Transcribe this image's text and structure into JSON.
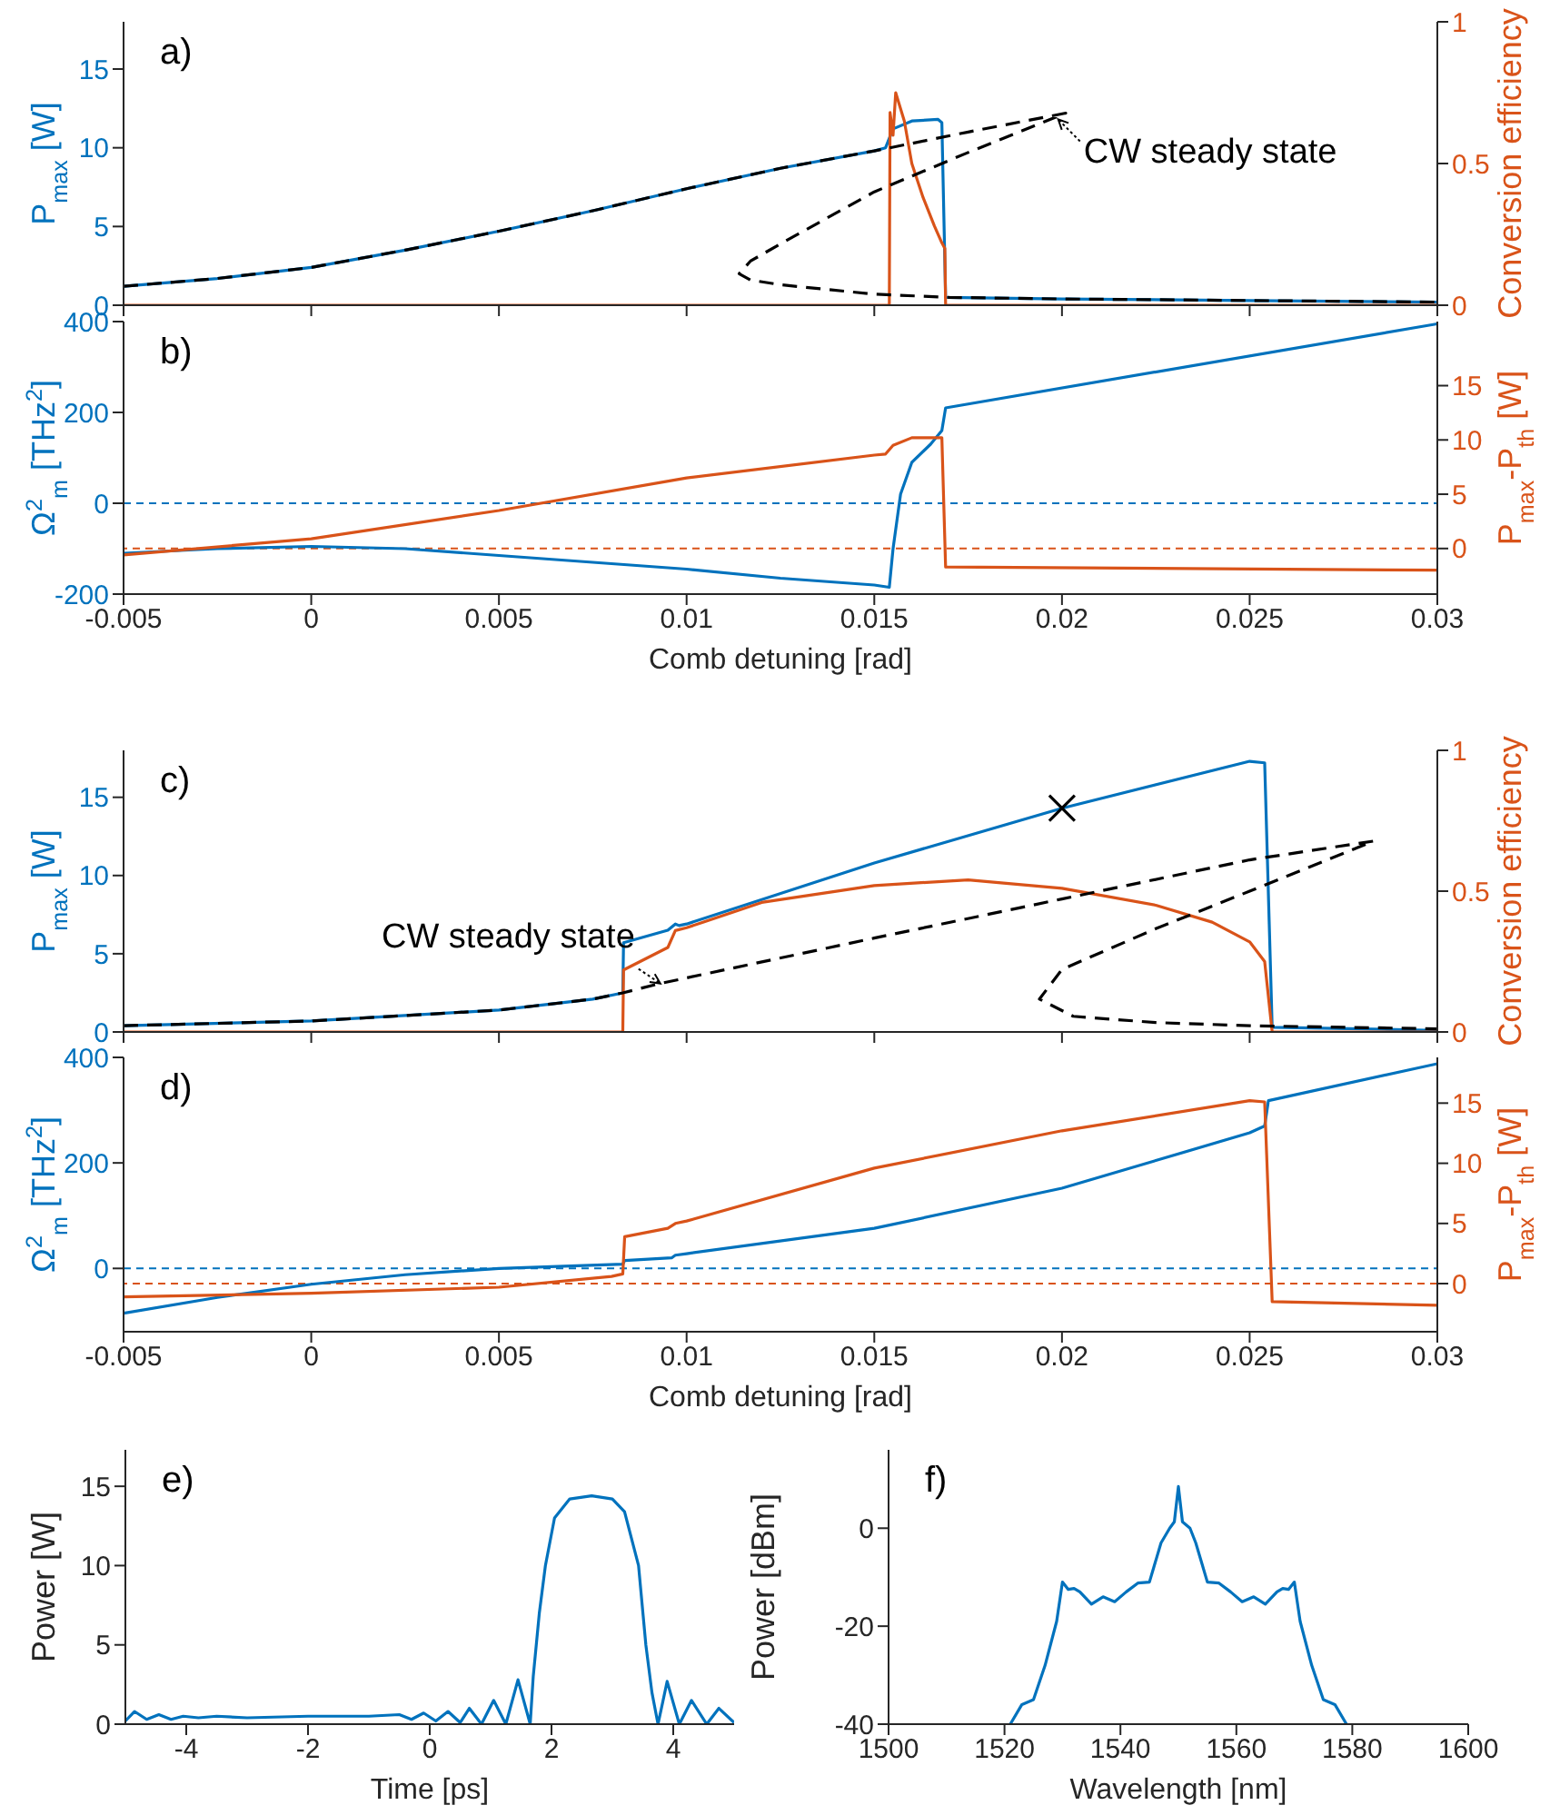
{
  "chart_data": [
    {
      "type": "line",
      "annotations": [
        "a)",
        {
          "text": "CW steady state",
          "x": 0.0199,
          "y": 11.8
        }
      ],
      "ylabel": "P$_{max}$ [W]",
      "y2label": "Conversion efficiency",
      "xlim": [
        -0.005,
        0.03
      ],
      "xticks": [
        -0.005,
        0,
        0.005,
        0.01,
        0.015,
        0.02,
        0.025,
        0.03
      ],
      "ylim": [
        0,
        18
      ],
      "yticks": [
        0,
        5,
        10,
        15
      ],
      "y2lim": [
        0,
        1
      ],
      "y2ticks": [
        0,
        0.5,
        1
      ],
      "tick_labels": "y",
      "series": [
        {
          "color": "#0072bd",
          "x": [
            -0.005,
            -0.0025,
            0,
            0.0025,
            0.005,
            0.0075,
            0.01,
            0.0125,
            0.015,
            0.0153,
            0.0155,
            0.016,
            0.0167,
            0.0168,
            0.0169,
            0.02,
            0.025,
            0.03
          ],
          "values": [
            1.2,
            1.7,
            2.4,
            3.5,
            4.7,
            6.0,
            7.4,
            8.7,
            9.8,
            10.0,
            11.2,
            11.7,
            11.8,
            11.6,
            0.5,
            0.4,
            0.3,
            0.2
          ]
        },
        {
          "color": "#d95319",
          "axis": "y2",
          "x": [
            -0.005,
            0.0154,
            0.01542,
            0.0155,
            0.01557,
            0.0158,
            0.016,
            0.0163,
            0.0166,
            0.0168,
            0.01688,
            0.0169,
            0.03
          ],
          "values": [
            0,
            0,
            0.68,
            0.6,
            0.75,
            0.65,
            0.5,
            0.38,
            0.28,
            0.22,
            0.2,
            0,
            0
          ]
        },
        {
          "color": "#000000",
          "line_style": "dashed",
          "x": [
            -0.005,
            -0.0025,
            0,
            0.0025,
            0.005,
            0.0075,
            0.01,
            0.0125,
            0.015,
            0.0175,
            0.0201,
            0.0175,
            0.015,
            0.0125,
            0.0117,
            0.0114,
            0.0117,
            0.0125,
            0.015,
            0.017,
            0.02,
            0.025,
            0.03
          ],
          "values": [
            1.2,
            1.7,
            2.4,
            3.5,
            4.7,
            6.0,
            7.4,
            8.7,
            9.8,
            11.0,
            12.2,
            9.7,
            7.2,
            3.9,
            2.8,
            2.0,
            1.6,
            1.3,
            0.7,
            0.5,
            0.4,
            0.3,
            0.2
          ]
        }
      ]
    },
    {
      "type": "line",
      "annotations": [
        "b)"
      ],
      "xlabel": "Comb detuning [rad]",
      "ylabel": "Ω$^{2}$$_{m}$ [THz$^{2}$]",
      "y2label": "P$_{max}$-P$_{th}$ [W]",
      "xlim": [
        -0.005,
        0.03
      ],
      "xticks": [
        -0.005,
        0,
        0.005,
        0.01,
        0.015,
        0.02,
        0.025,
        0.03
      ],
      "ylim": [
        -200,
        400
      ],
      "yticks": [
        -200,
        0,
        200,
        400
      ],
      "y2lim": [
        -4.2,
        20.9
      ],
      "y2ticks": [
        0,
        5,
        10,
        15
      ],
      "ref_lines": [
        {
          "axis": "y",
          "value": 0,
          "color": "#0072bd",
          "line_style": "dashed"
        },
        {
          "axis": "y2",
          "value": 0,
          "color": "#d95319",
          "line_style": "dashed"
        }
      ],
      "series": [
        {
          "color": "#0072bd",
          "x": [
            -0.005,
            -0.0025,
            0,
            0.0025,
            0.005,
            0.0075,
            0.01,
            0.0125,
            0.015,
            0.0154,
            0.0155,
            0.0157,
            0.016,
            0.0165,
            0.0168,
            0.0169,
            0.03
          ],
          "values": [
            -110,
            -100,
            -95,
            -100,
            -115,
            -130,
            -145,
            -165,
            -180,
            -185,
            -100,
            20,
            90,
            130,
            160,
            210,
            395
          ]
        },
        {
          "color": "#d95319",
          "axis": "y2",
          "x": [
            -0.005,
            0,
            0.005,
            0.01,
            0.015,
            0.0153,
            0.0155,
            0.016,
            0.0168,
            0.0169,
            0.03
          ],
          "values": [
            -0.6,
            0.9,
            3.5,
            6.5,
            8.6,
            8.7,
            9.5,
            10.2,
            10.2,
            -1.7,
            -2.0
          ]
        }
      ]
    },
    {
      "type": "line",
      "annotations": [
        "c)",
        {
          "text": "CW steady state",
          "x": 0.0093,
          "y": 3.1
        }
      ],
      "ylabel": "P$_{max}$ [W]",
      "y2label": "Conversion efficiency",
      "xlim": [
        -0.005,
        0.03
      ],
      "xticks": [
        -0.005,
        0,
        0.005,
        0.01,
        0.015,
        0.02,
        0.025,
        0.03
      ],
      "ylim": [
        0,
        18
      ],
      "yticks": [
        0,
        5,
        10,
        15
      ],
      "y2lim": [
        0,
        1
      ],
      "y2ticks": [
        0,
        0.5,
        1
      ],
      "tick_labels": "y",
      "series": [
        {
          "color": "#0072bd",
          "x": [
            -0.005,
            0,
            0.005,
            0.0075,
            0.0083,
            0.00832,
            0.0095,
            0.0097,
            0.0098,
            0.01,
            0.015,
            0.02,
            0.025,
            0.0254,
            0.0256,
            0.03
          ],
          "values": [
            0.4,
            0.7,
            1.4,
            2.1,
            2.5,
            5.7,
            6.5,
            6.9,
            6.8,
            6.9,
            10.8,
            14.3,
            17.3,
            17.2,
            0.3,
            0.1
          ]
        },
        {
          "color": "#d95319",
          "axis": "y2",
          "x": [
            -0.005,
            0.0083,
            0.00832,
            0.0095,
            0.0097,
            0.01,
            0.012,
            0.015,
            0.0175,
            0.02,
            0.0225,
            0.024,
            0.025,
            0.0254,
            0.0256,
            0.03
          ],
          "values": [
            0,
            0,
            0.22,
            0.3,
            0.36,
            0.37,
            0.46,
            0.52,
            0.54,
            0.51,
            0.45,
            0.39,
            0.32,
            0.25,
            0,
            0
          ]
        },
        {
          "color": "#000000",
          "line_style": "dashed",
          "x": [
            -0.005,
            0,
            0.005,
            0.0075,
            0.0083,
            0.0093,
            0.015,
            0.02,
            0.025,
            0.0283,
            0.025,
            0.0225,
            0.02,
            0.0194,
            0.0203,
            0.0225,
            0.025,
            0.03
          ],
          "values": [
            0.4,
            0.7,
            1.4,
            2.1,
            2.5,
            3.1,
            6.0,
            8.5,
            11.0,
            12.2,
            9.0,
            6.6,
            4.0,
            2.1,
            1.0,
            0.6,
            0.4,
            0.2
          ]
        },
        {
          "type": "scatter",
          "color": "#000000",
          "marker": "cross",
          "x": [
            0.02
          ],
          "values": [
            14.3
          ]
        }
      ]
    },
    {
      "type": "line",
      "annotations": [
        "d)"
      ],
      "xlabel": "Comb detuning [rad]",
      "ylabel": "Ω$^{2}$$_{m}$ [THz$^{2}$]",
      "y2label": "P$_{max}$-P$_{th}$ [W]",
      "xlim": [
        -0.005,
        0.03
      ],
      "xticks": [
        -0.005,
        0,
        0.005,
        0.01,
        0.015,
        0.02,
        0.025,
        0.03
      ],
      "ylim": [
        -120,
        400
      ],
      "yticks": [
        0,
        200,
        400
      ],
      "y2lim": [
        -4,
        18.8
      ],
      "y2ticks": [
        0,
        5,
        10,
        15
      ],
      "ref_lines": [
        {
          "axis": "y",
          "value": 0,
          "color": "#0072bd",
          "line_style": "dashed"
        },
        {
          "axis": "y2",
          "value": 0,
          "color": "#d95319",
          "line_style": "dashed"
        }
      ],
      "series": [
        {
          "color": "#0072bd",
          "x": [
            -0.005,
            -0.0025,
            0,
            0.0025,
            0.005,
            0.0083,
            0.00835,
            0.0096,
            0.0097,
            0.01,
            0.015,
            0.02,
            0.025,
            0.0254,
            0.0255,
            0.03
          ],
          "values": [
            -85,
            -55,
            -30,
            -12,
            0,
            8,
            15,
            20,
            25,
            28,
            76,
            152,
            257,
            270,
            318,
            388
          ]
        },
        {
          "color": "#d95319",
          "axis": "y2",
          "x": [
            -0.005,
            0,
            0.005,
            0.008,
            0.0083,
            0.00835,
            0.0095,
            0.0097,
            0.01,
            0.015,
            0.02,
            0.025,
            0.0254,
            0.0256,
            0.03
          ],
          "values": [
            -1.1,
            -0.8,
            -0.3,
            0.6,
            0.8,
            3.9,
            4.6,
            5.0,
            5.2,
            9.6,
            12.7,
            15.2,
            15.1,
            -1.5,
            -1.8
          ]
        }
      ]
    },
    {
      "type": "line",
      "annotations": [
        "e)"
      ],
      "xlabel": "Time [ps]",
      "ylabel": "Power [W]",
      "xlim": [
        -5,
        5
      ],
      "xticks": [
        -4,
        -2,
        0,
        2,
        4
      ],
      "ylim": [
        0,
        17.3
      ],
      "yticks": [
        0,
        5,
        10,
        15
      ],
      "series": [
        {
          "color": "#0072bd",
          "x": [
            -5,
            -4.85,
            -4.65,
            -4.45,
            -4.25,
            -4.05,
            -3.8,
            -3.5,
            -3,
            -2,
            -1,
            -0.5,
            -0.3,
            -0.1,
            0.1,
            0.3,
            0.5,
            0.65,
            0.85,
            1.05,
            1.25,
            1.45,
            1.65,
            1.7,
            1.8,
            1.9,
            2.05,
            2.3,
            2.66,
            3.0,
            3.2,
            3.43,
            3.55,
            3.65,
            3.75,
            3.9,
            4.1,
            4.3,
            4.55,
            4.75,
            5.0
          ],
          "values": [
            0.2,
            0.8,
            0.3,
            0.6,
            0.3,
            0.5,
            0.4,
            0.5,
            0.4,
            0.5,
            0.5,
            0.6,
            0.3,
            0.7,
            0.2,
            0.8,
            0.1,
            1.0,
            0.0,
            1.5,
            0.0,
            2.8,
            0.0,
            3,
            7,
            10,
            13,
            14.2,
            14.4,
            14.2,
            13.4,
            10,
            5,
            2,
            0,
            2.7,
            0,
            1.5,
            0,
            1.0,
            0.1
          ]
        }
      ]
    },
    {
      "type": "line",
      "annotations": [
        "f)"
      ],
      "xlabel": "Wavelength [nm]",
      "ylabel": "Power [dBm]",
      "xlim": [
        1500,
        1600
      ],
      "xticks": [
        1500,
        1520,
        1540,
        1560,
        1580,
        1600
      ],
      "ylim": [
        -40,
        16
      ],
      "yticks": [
        -40,
        -20,
        0
      ],
      "series": [
        {
          "color": "#0072bd",
          "x": [
            1521,
            1523,
            1525,
            1527,
            1529,
            1530,
            1531,
            1532,
            1533,
            1535,
            1537,
            1539,
            1541,
            1543,
            1545,
            1546,
            1547,
            1548.5,
            1549.3,
            1550,
            1550.7,
            1552,
            1553,
            1554,
            1555,
            1557,
            1559,
            1561,
            1563,
            1565,
            1567,
            1568,
            1569,
            1570,
            1571,
            1573,
            1575,
            1577,
            1579
          ],
          "values": [
            -40,
            -36,
            -35,
            -28,
            -19,
            -11,
            -12.5,
            -12.3,
            -13,
            -15.5,
            -14,
            -15,
            -13,
            -11.2,
            -11,
            -7,
            -3,
            0,
            1.3,
            8.5,
            1.3,
            0,
            -3,
            -7,
            -11,
            -11.2,
            -13,
            -15,
            -14,
            -15.5,
            -13,
            -12.3,
            -12.5,
            -11,
            -19,
            -28,
            -35,
            -36,
            -40
          ]
        }
      ]
    }
  ]
}
